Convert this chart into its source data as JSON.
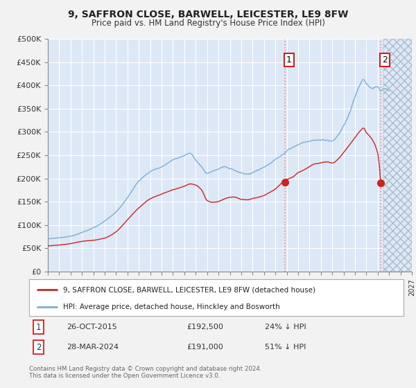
{
  "title": "9, SAFFRON CLOSE, BARWELL, LEICESTER, LE9 8FW",
  "subtitle": "Price paid vs. HM Land Registry's House Price Index (HPI)",
  "ylabel_ticks": [
    "£0",
    "£50K",
    "£100K",
    "£150K",
    "£200K",
    "£250K",
    "£300K",
    "£350K",
    "£400K",
    "£450K",
    "£500K"
  ],
  "ylim": [
    0,
    500000
  ],
  "xlim_start": 1995.0,
  "xlim_end": 2027.0,
  "hpi_color": "#7aaed6",
  "price_color": "#cc2222",
  "background_color": "#f2f2f2",
  "plot_bg_color": "#dce8f5",
  "grid_color": "#ffffff",
  "transaction1_x": 2015.82,
  "transaction1_y": 192500,
  "transaction2_x": 2024.25,
  "transaction2_y": 191000,
  "transaction1_label": "26-OCT-2015",
  "transaction1_price": "£192,500",
  "transaction1_hpi": "24% ↓ HPI",
  "transaction2_label": "28-MAR-2024",
  "transaction2_price": "£191,000",
  "transaction2_hpi": "51% ↓ HPI",
  "legend_price_label": "9, SAFFRON CLOSE, BARWELL, LEICESTER, LE9 8FW (detached house)",
  "legend_hpi_label": "HPI: Average price, detached house, Hinckley and Bosworth",
  "footer": "Contains HM Land Registry data © Crown copyright and database right 2024.\nThis data is licensed under the Open Government Licence v3.0.",
  "marker1_y": 450000,
  "marker2_y": 450000,
  "hatch_start": 2024.5,
  "hatch_end": 2027.0
}
